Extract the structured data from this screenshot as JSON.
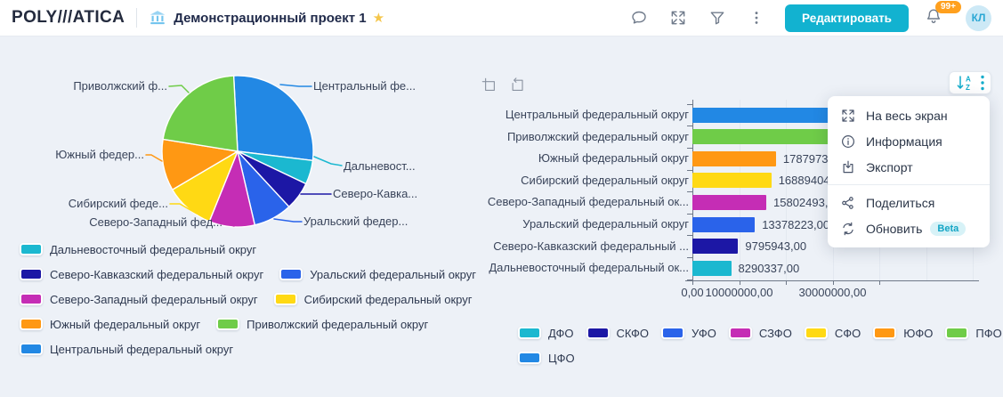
{
  "header": {
    "logo_text": "POLY///ATICA",
    "project_icon": "bank-icon",
    "title": "Демонстрационный проект 1",
    "favorite_icon": "star-icon",
    "action_icons": [
      "chat-icon",
      "expand-icon",
      "filter-icon",
      "kebab-menu-icon"
    ],
    "edit_button_label": "Редактировать",
    "notification_badge": "99+",
    "avatar_initials": "КЛ",
    "accent_color": "#12b2d0",
    "badge_color": "#ffa01e"
  },
  "district_colors": {
    "ЦФО": "#2288e4",
    "ПФО": "#6fcc48",
    "ЮФО": "#ff9813",
    "СФО": "#ffd914",
    "СЗФО": "#c52db5",
    "УФО": "#2a63ea",
    "СКФО": "#1c17a5",
    "ДФО": "#1bb8d0"
  },
  "bar_toolbar": {
    "left_icons": [
      "zoom-select-icon",
      "reset-zoom-icon"
    ],
    "right_icons": [
      "sort-az-icon",
      "kebab-menu-icon"
    ]
  },
  "context_menu": {
    "items": [
      {
        "icon": "fullscreen-icon",
        "label": "На весь экран"
      },
      {
        "icon": "info-icon",
        "label": "Информация"
      },
      {
        "icon": "export-icon",
        "label": "Экспорт",
        "divider_after": true
      },
      {
        "icon": "share-icon",
        "label": "Поделиться"
      },
      {
        "icon": "refresh-icon",
        "label": "Обновить",
        "badge": "Beta"
      }
    ]
  },
  "chart_data": [
    {
      "type": "pie",
      "title": "",
      "legend_position": "bottom-left",
      "slices": [
        {
          "key": "ЦФО",
          "label": "Центральный федеральный округ",
          "callout": "Центральный фе...",
          "value": 45000000
        },
        {
          "key": "ДФО",
          "label": "Дальневосточный федеральный округ",
          "callout": "Дальневост...",
          "value": 8290337
        },
        {
          "key": "СКФО",
          "label": "Северо-Кавказский федеральный округ",
          "callout": "Северо-Кавка...",
          "value": 9795943
        },
        {
          "key": "УФО",
          "label": "Уральский федеральный округ",
          "callout": "Уральский федер...",
          "value": 13378223
        },
        {
          "key": "СЗФО",
          "label": "Северо-Западный федеральный округ",
          "callout": "Северо-Западный фед...",
          "value": 15802493
        },
        {
          "key": "СФО",
          "label": "Сибирский федеральный округ",
          "callout": "Сибирский феде...",
          "value": 16889404
        },
        {
          "key": "ЮФО",
          "label": "Южный федеральный округ",
          "callout": "Южный федер...",
          "value": 17879738
        },
        {
          "key": "ПФО",
          "label": "Приволжский федеральный округ",
          "callout": "Приволжский ф...",
          "value": 35000000
        }
      ],
      "legend_rows": [
        [
          "ДФО"
        ],
        [
          "СКФО",
          "УФО"
        ],
        [
          "СЗФО",
          "СФО"
        ],
        [
          "ЮФО",
          "ПФО"
        ],
        [
          "ЦФО"
        ]
      ]
    },
    {
      "type": "bar",
      "orientation": "horizontal",
      "grid": true,
      "legend_position": "bottom",
      "xlim": [
        0,
        62500000
      ],
      "x_ticks": [
        {
          "value": 0,
          "label": "0,00"
        },
        {
          "value": 10000000,
          "label": "10000000,00"
        },
        {
          "value": 20000000,
          "label": ""
        },
        {
          "value": 30000000,
          "label": "30000000,00"
        },
        {
          "value": 40000000,
          "label": ""
        }
      ],
      "bars": [
        {
          "key": "ЦФО",
          "label": "Центральный федеральный округ",
          "value": 45000000,
          "value_label": ""
        },
        {
          "key": "ПФО",
          "label": "Приволжский федеральный округ",
          "value": 35000000,
          "value_label": ""
        },
        {
          "key": "ЮФО",
          "label": "Южный федеральный округ",
          "value": 17879738,
          "value_label": "17879738,00"
        },
        {
          "key": "СФО",
          "label": "Сибирский федеральный округ",
          "value": 16889404,
          "value_label": "16889404,00"
        },
        {
          "key": "СЗФО",
          "label": "Северо-Западный федеральный ок...",
          "value": 15802493,
          "value_label": "15802493,00"
        },
        {
          "key": "УФО",
          "label": "Уральский федеральный округ",
          "value": 13378223,
          "value_label": "13378223,00"
        },
        {
          "key": "СКФО",
          "label": "Северо-Кавказский федеральный ...",
          "value": 9795943,
          "value_label": "9795943,00"
        },
        {
          "key": "ДФО",
          "label": "Дальневосточный федеральный ок...",
          "value": 8290337,
          "value_label": "8290337,00"
        }
      ],
      "legend_rows": [
        [
          "ДФО",
          "СКФО",
          "УФО",
          "СЗФО",
          "СФО",
          "ЮФО",
          "ПФО"
        ],
        [
          "ЦФО"
        ]
      ]
    }
  ]
}
